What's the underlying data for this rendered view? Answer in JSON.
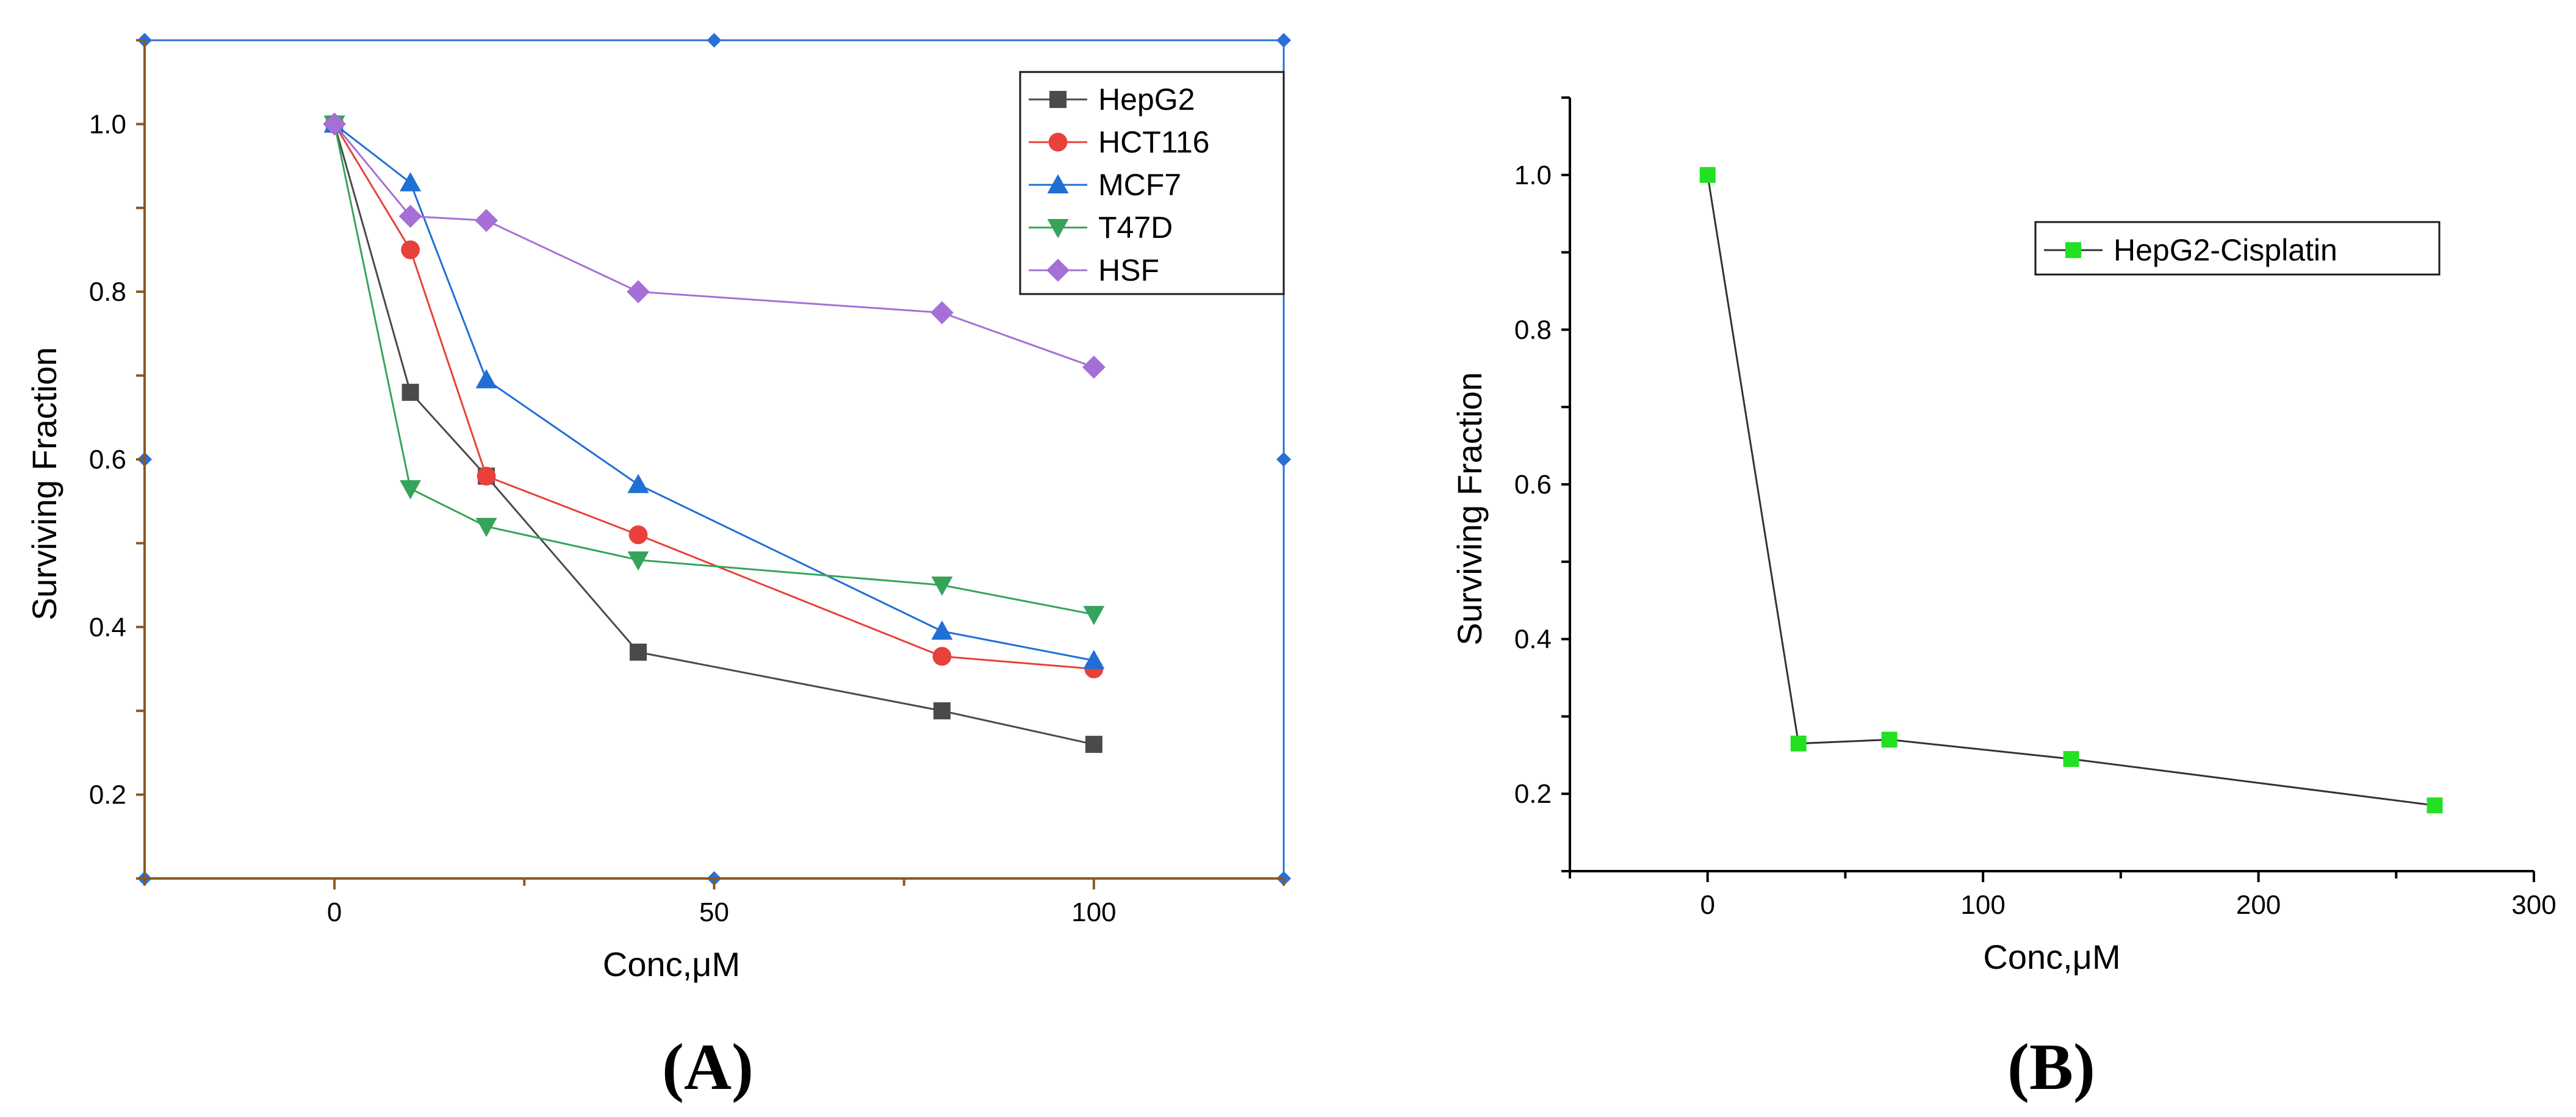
{
  "chart_data": [
    {
      "type": "line",
      "panel_label": "(A)",
      "xlabel": "Conc,μM",
      "ylabel": "Surviving Fraction",
      "xlim": [
        -25,
        125
      ],
      "ylim": [
        0.1,
        1.1
      ],
      "xticks": [
        0,
        50,
        100
      ],
      "yticks": [
        0.2,
        0.4,
        0.6,
        0.8,
        1.0
      ],
      "xtick_labels": [
        "0",
        "50",
        "100"
      ],
      "ytick_labels": [
        "0.2",
        "0.4",
        "0.6",
        "0.8",
        "1.0"
      ],
      "grid": false,
      "legend_position": "top-right",
      "series": [
        {
          "name": "HepG2",
          "color": "#4a4a4a",
          "marker": "square",
          "x": [
            0,
            10,
            20,
            40,
            80,
            100
          ],
          "y": [
            1.0,
            0.68,
            0.58,
            0.37,
            0.3,
            0.26
          ]
        },
        {
          "name": "HCT116",
          "color": "#e8403a",
          "marker": "circle",
          "x": [
            0,
            10,
            20,
            40,
            80,
            100
          ],
          "y": [
            1.0,
            0.85,
            0.58,
            0.51,
            0.365,
            0.35
          ]
        },
        {
          "name": "MCF7",
          "color": "#1f6fd6",
          "marker": "triangle-up",
          "x": [
            0,
            10,
            20,
            40,
            80,
            100
          ],
          "y": [
            1.0,
            0.93,
            0.695,
            0.57,
            0.395,
            0.36
          ]
        },
        {
          "name": "T47D",
          "color": "#36a35a",
          "marker": "triangle-down",
          "x": [
            0,
            10,
            20,
            40,
            80,
            100
          ],
          "y": [
            1.0,
            0.565,
            0.52,
            0.48,
            0.45,
            0.415
          ]
        },
        {
          "name": "HSF",
          "color": "#a66fd6",
          "marker": "diamond",
          "x": [
            0,
            10,
            20,
            40,
            80,
            100
          ],
          "y": [
            1.0,
            0.89,
            0.885,
            0.8,
            0.775,
            0.71
          ]
        }
      ]
    },
    {
      "type": "line",
      "panel_label": "(B)",
      "xlabel": "Conc,μM",
      "ylabel": "Surviving Fraction",
      "xlim": [
        -50,
        300
      ],
      "ylim": [
        0.1,
        1.1
      ],
      "xticks": [
        0,
        100,
        200,
        300
      ],
      "yticks": [
        0.2,
        0.4,
        0.6,
        0.8,
        1.0
      ],
      "xtick_labels": [
        "0",
        "100",
        "200",
        "300"
      ],
      "ytick_labels": [
        "0.2",
        "0.4",
        "0.6",
        "0.8",
        "1.0"
      ],
      "grid": false,
      "legend_position": "top-right",
      "series": [
        {
          "name": "HepG2-Cisplatin",
          "color": "#22e022",
          "line_color": "#333333",
          "marker": "square",
          "x": [
            0,
            33,
            66,
            132,
            264
          ],
          "y": [
            1.0,
            0.265,
            0.27,
            0.245,
            0.185
          ]
        }
      ]
    }
  ]
}
